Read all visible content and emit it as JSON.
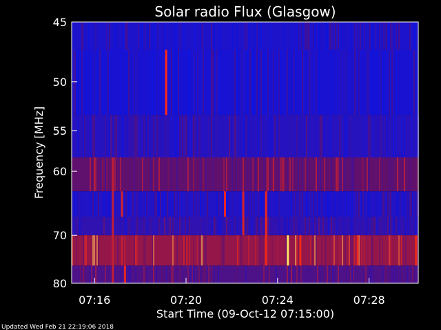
{
  "chart_data": {
    "type": "heatmap",
    "title": "Solar radio Flux (Glasgow)",
    "xlabel": "Start Time (09-Oct-12 07:15:00)",
    "ylabel": "Frequency [MHz]",
    "x_ticks": [
      "07:16",
      "07:20",
      "07:24",
      "07:28"
    ],
    "x_tick_minutes": [
      16,
      20,
      24,
      28
    ],
    "xlim_minutes": [
      15.0,
      30.15
    ],
    "y_ticks": [
      "45",
      "50",
      "55",
      "60",
      "70",
      "80"
    ],
    "y_tick_values": [
      45,
      50,
      55,
      60,
      70,
      80
    ],
    "ylim": [
      45,
      80
    ],
    "y_scale": "reciprocal",
    "grid": false,
    "colors": {
      "background": "#000000",
      "low_intensity": "#0a14e6",
      "mid_intensity": "#6a1060",
      "high_intensity": "#ff2a14",
      "peak_intensity": "#ffe060"
    },
    "frequency_bands": [
      {
        "f_low": 45.0,
        "f_high": 47.2,
        "level": 0.1
      },
      {
        "f_low": 47.2,
        "f_high": 53.3,
        "level": 0.08
      },
      {
        "f_low": 53.3,
        "f_high": 58.2,
        "level": 0.15
      },
      {
        "f_low": 58.2,
        "f_high": 62.8,
        "level": 0.45
      },
      {
        "f_low": 62.8,
        "f_high": 66.8,
        "level": 0.12
      },
      {
        "f_low": 66.8,
        "f_high": 70.0,
        "level": 0.2
      },
      {
        "f_low": 70.0,
        "f_high": 76.0,
        "level": 0.6
      },
      {
        "f_low": 76.0,
        "f_high": 80.0,
        "level": 0.35
      }
    ],
    "bursts": [
      {
        "minute": 19.13,
        "f_low": 47.2,
        "f_high": 53.3,
        "level": 0.85
      },
      {
        "minute": 16.8,
        "f_low": 58.2,
        "f_high": 80.0,
        "level": 0.7
      },
      {
        "minute": 17.2,
        "f_low": 62.8,
        "f_high": 66.8,
        "level": 0.75
      },
      {
        "minute": 17.33,
        "f_low": 76.0,
        "f_high": 80.0,
        "level": 0.8
      },
      {
        "minute": 21.7,
        "f_low": 62.8,
        "f_high": 66.8,
        "level": 0.8
      },
      {
        "minute": 22.5,
        "f_low": 62.8,
        "f_high": 70.0,
        "level": 0.75
      },
      {
        "minute": 23.5,
        "f_low": 62.8,
        "f_high": 76.0,
        "level": 0.8
      },
      {
        "minute": 24.45,
        "f_low": 70.0,
        "f_high": 76.0,
        "level": 1.0
      },
      {
        "minute": 25.0,
        "f_low": 70.0,
        "f_high": 76.0,
        "level": 0.85
      },
      {
        "minute": 27.5,
        "f_low": 70.0,
        "f_high": 76.0,
        "level": 0.8
      },
      {
        "minute": 30.05,
        "f_low": 70.0,
        "f_high": 76.0,
        "level": 0.8
      }
    ]
  },
  "footer": {
    "updated_text": "Updated Wed Feb 21 22:19:06 2018"
  }
}
